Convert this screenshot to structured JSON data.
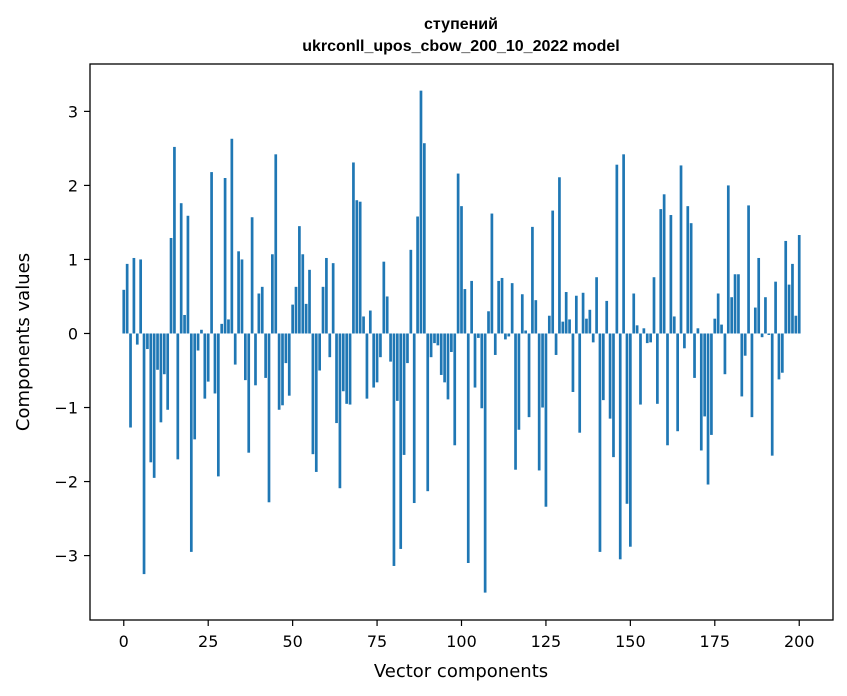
{
  "chart_data": {
    "type": "bar",
    "title_line1": "ступений",
    "title_line2": "ukrconll_upos_cbow_200_10_2022 model",
    "xlabel": "Vector components",
    "ylabel": "Components values",
    "xlim": [
      -10,
      210
    ],
    "ylim": [
      -3.87,
      3.64
    ],
    "xticks": [
      0,
      25,
      50,
      75,
      100,
      125,
      150,
      175,
      200
    ],
    "yticks": [
      -3,
      -2,
      -1,
      0,
      1,
      2,
      3
    ],
    "xtick_labels": [
      "0",
      "25",
      "50",
      "75",
      "100",
      "125",
      "150",
      "175",
      "200"
    ],
    "ytick_labels": [
      "−3",
      "−2",
      "−1",
      "0",
      "1",
      "2",
      "3"
    ],
    "bar_color": "#1f77b4",
    "grid": false,
    "values": [
      0.59,
      0.94,
      -1.27,
      1.02,
      -0.15,
      1.0,
      -3.25,
      -0.21,
      -1.74,
      -1.95,
      -0.49,
      -1.2,
      -0.55,
      -1.03,
      1.29,
      2.52,
      -1.7,
      1.76,
      0.25,
      1.59,
      -2.95,
      -1.43,
      -0.23,
      0.05,
      -0.88,
      -0.65,
      2.18,
      -0.81,
      -1.93,
      0.13,
      2.1,
      0.19,
      2.63,
      -0.42,
      1.11,
      1.0,
      -0.63,
      -1.61,
      1.57,
      -0.7,
      0.54,
      0.63,
      -0.6,
      -2.28,
      1.07,
      2.42,
      -1.03,
      -0.97,
      -0.4,
      -0.84,
      0.39,
      0.63,
      1.45,
      1.07,
      0.4,
      0.86,
      -1.63,
      -1.87,
      -0.5,
      0.63,
      1.02,
      -0.32,
      0.95,
      -1.21,
      -2.09,
      -0.78,
      -0.95,
      -0.96,
      2.31,
      1.8,
      1.78,
      0.23,
      -0.88,
      0.31,
      -0.73,
      -0.66,
      -0.32,
      0.97,
      0.5,
      -0.38,
      -3.14,
      -0.91,
      -2.91,
      -1.64,
      -0.4,
      1.13,
      -2.29,
      1.58,
      3.28,
      2.57,
      -2.13,
      -0.32,
      -0.13,
      -0.16,
      -0.56,
      -0.66,
      -0.89,
      -0.25,
      -1.51,
      2.16,
      1.72,
      0.6,
      -3.1,
      0.71,
      -0.73,
      -0.06,
      -1.01,
      -3.5,
      0.3,
      1.62,
      -0.29,
      0.71,
      0.75,
      -0.08,
      -0.04,
      0.68,
      -1.84,
      -1.3,
      0.53,
      0.04,
      -1.13,
      1.44,
      0.45,
      -1.85,
      -1.0,
      -2.34,
      0.24,
      1.66,
      -0.29,
      2.11,
      0.16,
      0.56,
      0.19,
      -0.79,
      0.51,
      -1.34,
      0.55,
      0.2,
      0.32,
      -0.12,
      0.76,
      -2.95,
      -0.9,
      0.44,
      -1.15,
      -1.67,
      2.28,
      -3.05,
      2.42,
      -2.3,
      -2.88,
      0.54,
      0.11,
      -0.96,
      0.07,
      -0.13,
      -0.12,
      0.76,
      -0.95,
      1.68,
      1.88,
      -1.51,
      1.6,
      0.23,
      -1.32,
      2.27,
      -0.2,
      1.72,
      1.49,
      -0.6,
      0.07,
      -1.58,
      -1.12,
      -2.04,
      -1.37,
      0.2,
      0.54,
      0.12,
      -0.55,
      2.0,
      0.49,
      0.8,
      0.8,
      -0.85,
      -0.3,
      1.73,
      -1.13,
      0.35,
      1.02,
      -0.05,
      0.49,
      -0.02,
      -1.65,
      0.7,
      -0.62,
      -0.53,
      1.25,
      0.66,
      0.94,
      0.24,
      1.33
    ]
  }
}
